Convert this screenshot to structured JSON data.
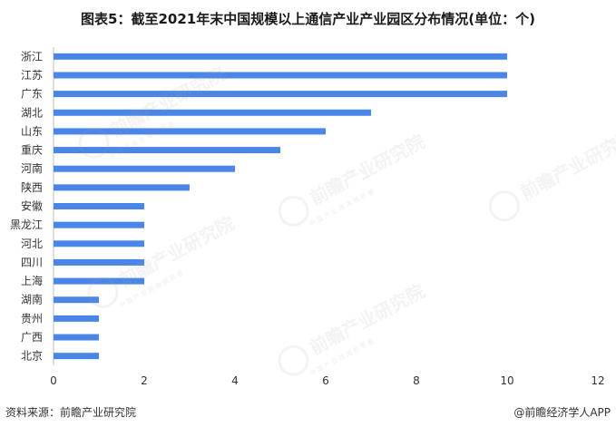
{
  "title": "图表5：截至2021年末中国规模以上通信产业产业园区分布情况(单位：个)",
  "footer": {
    "source": "资料来源：前瞻产业研究院",
    "brand": "@前瞻经济学人APP"
  },
  "watermark": {
    "text": "前瞻产业研究院",
    "sub": "中国产业咨询领导者"
  },
  "colors": {
    "bar": "#4a86e8",
    "axis": "#bfbfbf"
  },
  "chart_data": {
    "type": "bar",
    "orientation": "horizontal",
    "categories": [
      "浙江",
      "江苏",
      "广东",
      "湖北",
      "山东",
      "重庆",
      "河南",
      "陕西",
      "安徽",
      "黑龙江",
      "河北",
      "四川",
      "上海",
      "湖南",
      "贵州",
      "广西",
      "北京"
    ],
    "values": [
      10,
      10,
      10,
      7,
      6,
      5,
      4,
      3,
      2,
      2,
      2,
      2,
      2,
      1,
      1,
      1,
      1
    ],
    "xlim": [
      0,
      12
    ],
    "xticks": [
      0,
      2,
      4,
      6,
      8,
      10,
      12
    ],
    "grid": false
  }
}
